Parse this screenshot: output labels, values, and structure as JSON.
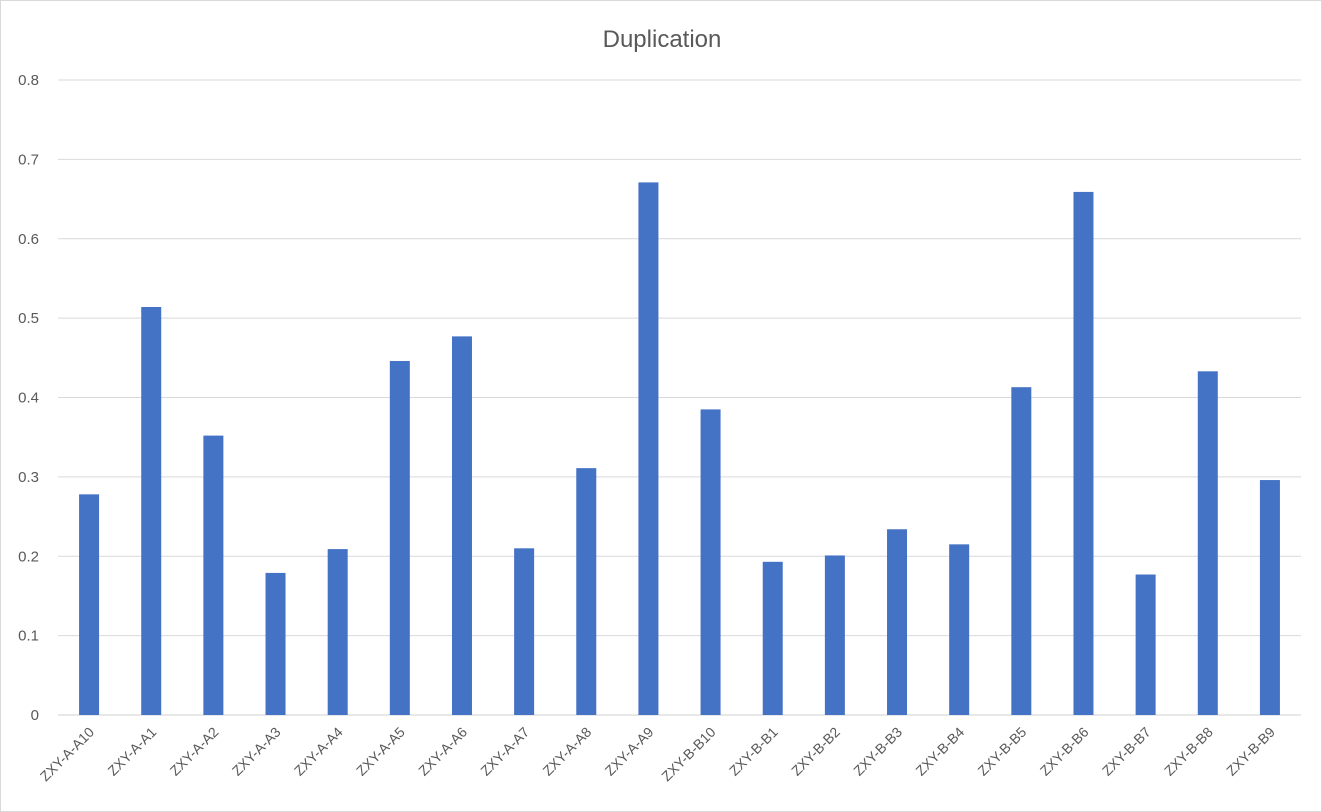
{
  "chart_data": {
    "type": "bar",
    "title": "Duplication",
    "xlabel": "",
    "ylabel": "",
    "ylim": [
      0,
      0.8
    ],
    "yticks": [
      "0",
      "0.1",
      "0.2",
      "0.3",
      "0.4",
      "0.5",
      "0.6",
      "0.7",
      "0.8"
    ],
    "grid": true,
    "legend": "none",
    "bar_color": "#4472C4",
    "gridline_color": "#d9d9d9",
    "categories": [
      "ZXY-A-A10",
      "ZXY-A-A1",
      "ZXY-A-A2",
      "ZXY-A-A3",
      "ZXY-A-A4",
      "ZXY-A-A5",
      "ZXY-A-A6",
      "ZXY-A-A7",
      "ZXY-A-A8",
      "ZXY-A-A9",
      "ZXY-B-B10",
      "ZXY-B-B1",
      "ZXY-B-B2",
      "ZXY-B-B3",
      "ZXY-B-B4",
      "ZXY-B-B5",
      "ZXY-B-B6",
      "ZXY-B-B7",
      "ZXY-B-B8",
      "ZXY-B-B9"
    ],
    "values": [
      0.278,
      0.514,
      0.352,
      0.179,
      0.209,
      0.446,
      0.477,
      0.21,
      0.311,
      0.671,
      0.385,
      0.193,
      0.201,
      0.234,
      0.215,
      0.413,
      0.659,
      0.177,
      0.433,
      0.296
    ]
  }
}
